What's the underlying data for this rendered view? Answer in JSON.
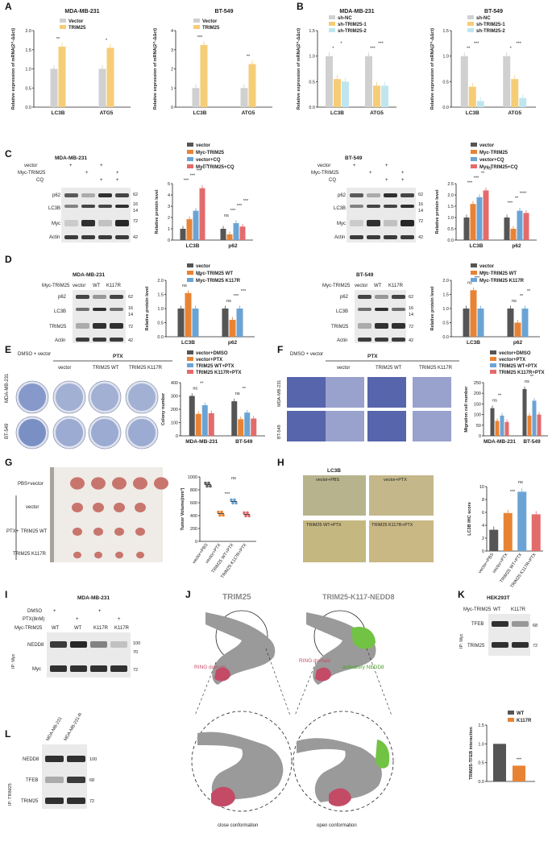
{
  "colors": {
    "gray": "#d0d0d0",
    "yellow": "#f5cd77",
    "cyan": "#bfe6ef",
    "cyan2": "#a6dcea",
    "dgray": "#555555",
    "orange": "#e98334",
    "blue": "#6ba4d4",
    "red": "#e46b6b",
    "blot": "#1c1c1c",
    "tumor": "#c8756d",
    "ihcBlue": "#6f86c0",
    "ihcBrown": "#c8ab73",
    "struct": "#9a9a9a",
    "ring": "#c34b66",
    "nedd8": "#72c343"
  },
  "panels": {
    "A": {
      "label": "A"
    },
    "B": {
      "label": "B"
    },
    "C": {
      "label": "C"
    },
    "D": {
      "label": "D"
    },
    "E": {
      "label": "E"
    },
    "F": {
      "label": "F"
    },
    "G": {
      "label": "G"
    },
    "H": {
      "label": "H"
    },
    "I": {
      "label": "I"
    },
    "J": {
      "label": "J"
    },
    "K": {
      "label": "K"
    },
    "L": {
      "label": "L"
    }
  },
  "chart_data": [
    {
      "panel": "A",
      "type": "bar",
      "title": "MDA-MB-231",
      "ylabel": "Relative expression of mRNA(2^-ΔΔct)",
      "categories": [
        "LC3B",
        "ATG5"
      ],
      "ylim": [
        0,
        2.0
      ],
      "yticks": [
        "0.0",
        "0.5",
        "1.0",
        "1.5",
        "2.0"
      ],
      "series": [
        {
          "name": "Vector",
          "values": [
            1.0,
            1.0
          ],
          "color": "gray"
        },
        {
          "name": "TRIM25",
          "values": [
            1.58,
            1.55
          ],
          "color": "yellow"
        }
      ],
      "annotations": [
        "**",
        "*"
      ]
    },
    {
      "panel": "A",
      "type": "bar",
      "title": "BT-549",
      "ylabel": "Relative expression of mRNA(2^-ΔΔct)",
      "categories": [
        "LC3B",
        "ATG5"
      ],
      "ylim": [
        0,
        4
      ],
      "yticks": [
        "0",
        "1",
        "2",
        "3",
        "4"
      ],
      "series": [
        {
          "name": "Vector",
          "values": [
            1.0,
            1.0
          ],
          "color": "gray"
        },
        {
          "name": "TRIM25",
          "values": [
            3.25,
            2.25
          ],
          "color": "yellow"
        }
      ],
      "annotations": [
        "***",
        "**"
      ]
    },
    {
      "panel": "B",
      "type": "bar",
      "title": "MDA-MB-231",
      "ylabel": "Relative expression of mRNA(2^-ΔΔct)",
      "categories": [
        "LC3B",
        "ATG5"
      ],
      "ylim": [
        0,
        1.5
      ],
      "yticks": [
        "0.0",
        "0.5",
        "1.0",
        "1.5"
      ],
      "series": [
        {
          "name": "sh-NC",
          "values": [
            1.0,
            1.0
          ],
          "color": "gray"
        },
        {
          "name": "sh-TRIM25-1",
          "values": [
            0.55,
            0.42
          ],
          "color": "yellow"
        },
        {
          "name": "sh-TRIM25-2",
          "values": [
            0.5,
            0.42
          ],
          "color": "cyan"
        }
      ],
      "annotations": [
        "*",
        "*",
        "***",
        "***"
      ]
    },
    {
      "panel": "B",
      "type": "bar",
      "title": "BT-549",
      "ylabel": "Relative expression of mRNA(2^-ΔΔct)",
      "categories": [
        "LC3B",
        "ATG5"
      ],
      "ylim": [
        0,
        1.5
      ],
      "yticks": [
        "0.0",
        "0.5",
        "1.0",
        "1.5"
      ],
      "series": [
        {
          "name": "sh-NC",
          "values": [
            1.0,
            1.0
          ],
          "color": "gray"
        },
        {
          "name": "sh-TRIM25-1",
          "values": [
            0.4,
            0.55
          ],
          "color": "yellow"
        },
        {
          "name": "sh-TRIM25-2",
          "values": [
            0.12,
            0.18
          ],
          "color": "cyan"
        }
      ],
      "annotations": [
        "**",
        "***",
        "*",
        "***"
      ]
    },
    {
      "panel": "C",
      "type": "bar",
      "ylabel": "Relative protein  level",
      "categories": [
        "LC3B",
        "p62"
      ],
      "ylim": [
        0,
        5
      ],
      "yticks": [
        "0",
        "1",
        "2",
        "3",
        "4",
        "5"
      ],
      "series": [
        {
          "name": "vector",
          "values": [
            1.0,
            1.0
          ],
          "color": "dgray"
        },
        {
          "name": "Myc-TRIM25",
          "values": [
            1.85,
            0.5
          ],
          "color": "orange"
        },
        {
          "name": "vector+CQ",
          "values": [
            2.6,
            1.5
          ],
          "color": "blue"
        },
        {
          "name": "Myc-TRIM25+CQ",
          "values": [
            4.6,
            1.2
          ],
          "color": "red"
        }
      ],
      "annotations": [
        "***",
        "***",
        "***",
        "***",
        "ns",
        "***",
        "***",
        "***"
      ]
    },
    {
      "panel": "C",
      "type": "bar",
      "ylabel": "Relative protein  level",
      "categories": [
        "LC3B",
        "p62"
      ],
      "ylim": [
        0,
        2.5
      ],
      "yticks": [
        "0.0",
        "0.5",
        "1.0",
        "1.5",
        "2.0",
        "2.5"
      ],
      "series": [
        {
          "name": "vector",
          "values": [
            1.0,
            1.0
          ],
          "color": "dgray"
        },
        {
          "name": "Myc-TRIM25",
          "values": [
            1.6,
            0.5
          ],
          "color": "orange"
        },
        {
          "name": "vector+CQ",
          "values": [
            1.9,
            1.3
          ],
          "color": "blue"
        },
        {
          "name": "Myc-TRIM25+CQ",
          "values": [
            2.2,
            1.2
          ],
          "color": "red"
        }
      ],
      "annotations": [
        "***",
        "***",
        "**",
        "ns",
        "***",
        "**",
        "****"
      ]
    },
    {
      "panel": "D",
      "type": "bar",
      "ylabel": "Relative protein  level",
      "categories": [
        "LC3B",
        "p62"
      ],
      "ylim": [
        0,
        2.0
      ],
      "yticks": [
        "0.0",
        "0.5",
        "1.0",
        "1.5",
        "2.0"
      ],
      "series": [
        {
          "name": "vector",
          "values": [
            1.0,
            1.0
          ],
          "color": "dgray"
        },
        {
          "name": "Myc-TRIM25 WT",
          "values": [
            1.55,
            0.6
          ],
          "color": "orange"
        },
        {
          "name": "Myc-TRIM25 K117R",
          "values": [
            1.0,
            1.0
          ],
          "color": "blue"
        }
      ],
      "annotations": [
        "ns",
        "**",
        "**",
        "ns",
        "***",
        "***"
      ]
    },
    {
      "panel": "D",
      "type": "bar",
      "ylabel": "Relative protein  level",
      "categories": [
        "LC3B",
        "p62"
      ],
      "ylim": [
        0,
        2.0
      ],
      "yticks": [
        "0.0",
        "0.5",
        "1.0",
        "1.5",
        "2.0"
      ],
      "series": [
        {
          "name": "vector",
          "values": [
            1.0,
            1.0
          ],
          "color": "dgray"
        },
        {
          "name": "Myc-TRIM25 WT",
          "values": [
            1.65,
            0.5
          ],
          "color": "orange"
        },
        {
          "name": "Myc-TRIM25 K117R",
          "values": [
            1.0,
            1.0
          ],
          "color": "blue"
        }
      ],
      "annotations": [
        "ns",
        "***",
        "***",
        "ns",
        "**",
        "**"
      ]
    },
    {
      "panel": "E",
      "type": "bar",
      "ylabel": "Colony number",
      "categories": [
        "MDA-MB-231",
        "BT-549"
      ],
      "ylim": [
        0,
        400
      ],
      "yticks": [
        "0",
        "100",
        "200",
        "300",
        "400"
      ],
      "series": [
        {
          "name": "vector+DMSO",
          "values": [
            300,
            260
          ],
          "color": "dgray"
        },
        {
          "name": "vector+PTX",
          "values": [
            165,
            125
          ],
          "color": "orange"
        },
        {
          "name": "TRIM25 WT+PTX",
          "values": [
            230,
            175
          ],
          "color": "blue"
        },
        {
          "name": "TRIM25 K117R+PTX",
          "values": [
            170,
            130
          ],
          "color": "red"
        }
      ],
      "annotations": [
        "ns",
        "**",
        "ns",
        "**"
      ]
    },
    {
      "panel": "F",
      "type": "bar",
      "ylabel": "Migration cell number",
      "categories": [
        "MDA-MB-231",
        "BT-549"
      ],
      "ylim": [
        0,
        250
      ],
      "yticks": [
        "0",
        "50",
        "100",
        "150",
        "200",
        "250"
      ],
      "series": [
        {
          "name": "vector+DMSO",
          "values": [
            130,
            220
          ],
          "color": "dgray"
        },
        {
          "name": "vector+PTX",
          "values": [
            70,
            95
          ],
          "color": "orange"
        },
        {
          "name": "TRIM25 WT+PTX",
          "values": [
            95,
            165
          ],
          "color": "blue"
        },
        {
          "name": "TRIM25 K117R+PTX",
          "values": [
            65,
            100
          ],
          "color": "red"
        }
      ],
      "annotations": [
        "ns",
        "**",
        "ns",
        "**"
      ]
    },
    {
      "panel": "G",
      "type": "scatter",
      "ylabel": "Tumor Volume(mm³)",
      "categories": [
        "vector+PBS",
        "vector+PTX",
        "TRIM25 WT+PTX",
        "TRIM25 K117R+PTX"
      ],
      "ylim": [
        0,
        1000
      ],
      "yticks": [
        "0",
        "200",
        "400",
        "600",
        "800",
        "1000"
      ],
      "series": [
        {
          "values": [
            880,
            430,
            620,
            420
          ]
        }
      ],
      "annotations": [
        "***",
        "ns"
      ]
    },
    {
      "panel": "H",
      "type": "bar",
      "ylabel": "LC3B IHC score",
      "categories": [
        "vector+PBS",
        "vector+PTX",
        "TRIM25 WT+PTX",
        "TRIM25 K117R+PTX"
      ],
      "ylim": [
        0,
        10
      ],
      "yticks": [
        "0",
        "2",
        "4",
        "6",
        "8",
        "10"
      ],
      "series": [
        {
          "values": [
            3.3,
            5.9,
            9.2,
            5.7
          ]
        }
      ],
      "annotations": [
        "***",
        "ns"
      ]
    },
    {
      "panel": "K",
      "type": "bar",
      "ylabel": "TRIM25-TFEB interaction",
      "categories": [
        "WT",
        "K117R"
      ],
      "ylim": [
        0,
        1.5
      ],
      "yticks": [
        "0.0",
        "0.5",
        "1.0",
        "1.5"
      ],
      "series": [
        {
          "name": "WT",
          "values": [
            1.0,
            0.42
          ]
        }
      ],
      "annotations": [
        "***"
      ]
    }
  ],
  "labels": {
    "C": {
      "cells_left": "MDA-MB-231",
      "cells_right": "BT-549",
      "row1": "vector",
      "row2": "Myc-TRIM25",
      "row3": "CQ",
      "blots": [
        "p62",
        "LC3B",
        "Myc",
        "Actin"
      ],
      "mw": [
        "62",
        "16",
        "14",
        "72",
        "42"
      ],
      "cond": [
        "+",
        "+",
        "+",
        "+",
        "+",
        "+",
        "+",
        "+"
      ]
    },
    "D": {
      "cells_left": "MDA-MB-231",
      "cells_right": "BT-549",
      "row": "Myc-TRIM25",
      "lanes": [
        "vector",
        "WT",
        "K117R"
      ],
      "blots": [
        "p62",
        "LC3B",
        "TRIM25",
        "Actin"
      ],
      "mw": [
        "62",
        "16",
        "14",
        "72",
        "42"
      ]
    },
    "E": {
      "dmso": "DMSO + vector",
      "ptx": "PTX",
      "lanes": [
        "vector",
        "TRIM25 WT",
        "TRIM25 K117R"
      ],
      "rows": [
        "MDA-MB-231",
        "BT-549"
      ]
    },
    "F": {
      "dmso": "DMSO + vector",
      "ptx": "PTX",
      "lanes": [
        "vector",
        "TRIM25 WT",
        "TRIM25 K117R"
      ],
      "rows": [
        "MDA-MB-231",
        "BT-549"
      ]
    },
    "G": {
      "rows": [
        "PBS+vector",
        "vector",
        "TRIM25 WT",
        "TRIM25 K117R"
      ],
      "ptx": "PTX+"
    },
    "H": {
      "title": "LC3B",
      "tiles": [
        "vector+PBS",
        "vector+PTX",
        "TRIM25 WT+PTX",
        "TRIM25 K117R+PTX"
      ]
    },
    "I": {
      "cells": "MDA-MB-231",
      "r1": "DMSO",
      "r2": "PTX(8nM)",
      "r3": "Myc-TRIM25",
      "lanes": [
        "WT",
        "WT",
        "K117R",
        "K117R"
      ],
      "blots": [
        "NEDD8",
        "Myc"
      ],
      "mw": [
        "100",
        "70",
        "72"
      ],
      "ip": "IP: Myc"
    },
    "J": {
      "t1": "TRIM25",
      "t2": "TRIM25-K117-NEDD8",
      "ring": "RING domain",
      "nedd": "activatory NEDD8",
      "c1": "close conformation",
      "c2": "open conformation"
    },
    "K": {
      "cells": "HEK293T",
      "row": "Myc-TRIM25",
      "lanes": [
        "WT",
        "K117R"
      ],
      "blots": [
        "TFEB",
        "TRIM25"
      ],
      "mw": [
        "68",
        "72"
      ],
      "ip": "IP: Myc"
    },
    "L": {
      "lanes": [
        "MDA-MB-231",
        "MDA-MB-231-R"
      ],
      "blots": [
        "NEDD8",
        "TFEB",
        "TRIM25"
      ],
      "mw": [
        "100",
        "68",
        "72"
      ],
      "ip": "IP: TRIM25"
    }
  }
}
